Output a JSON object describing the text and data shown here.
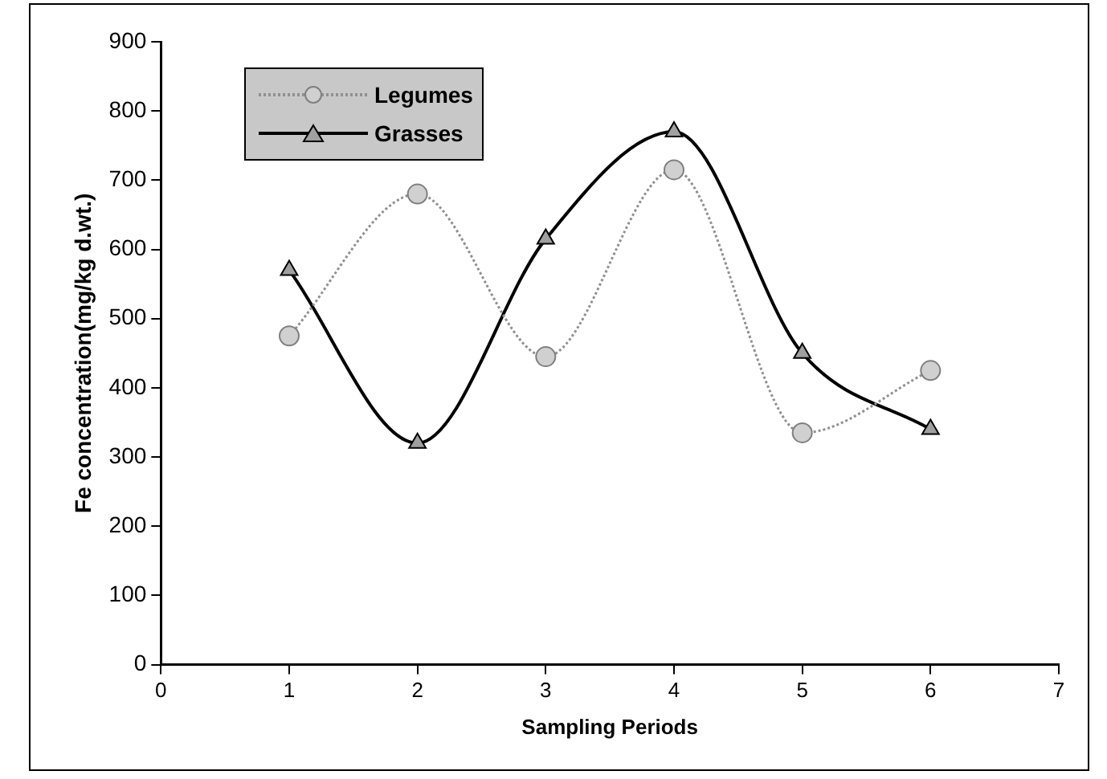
{
  "chart_data": {
    "type": "line",
    "xlabel": "Sampling Periods",
    "ylabel": "Fe concentration(mg/kg d.wt.)",
    "x": [
      1,
      2,
      3,
      4,
      5,
      6
    ],
    "xlim": [
      0,
      7
    ],
    "xticks": [
      0,
      1,
      2,
      3,
      4,
      5,
      6,
      7
    ],
    "ylim": [
      0,
      900
    ],
    "yticks": [
      0,
      100,
      200,
      300,
      400,
      500,
      600,
      700,
      800,
      900
    ],
    "grid": false,
    "legend": "top left",
    "series": [
      {
        "name": "Legumes",
        "color": "#909090",
        "marker": "circle",
        "line_style": "dotted",
        "values": [
          475,
          680,
          445,
          715,
          335,
          425
        ]
      },
      {
        "name": "Grasses",
        "color": "#000000",
        "marker": "triangle",
        "line_style": "solid",
        "values": [
          570,
          320,
          615,
          770,
          450,
          340
        ]
      }
    ]
  }
}
